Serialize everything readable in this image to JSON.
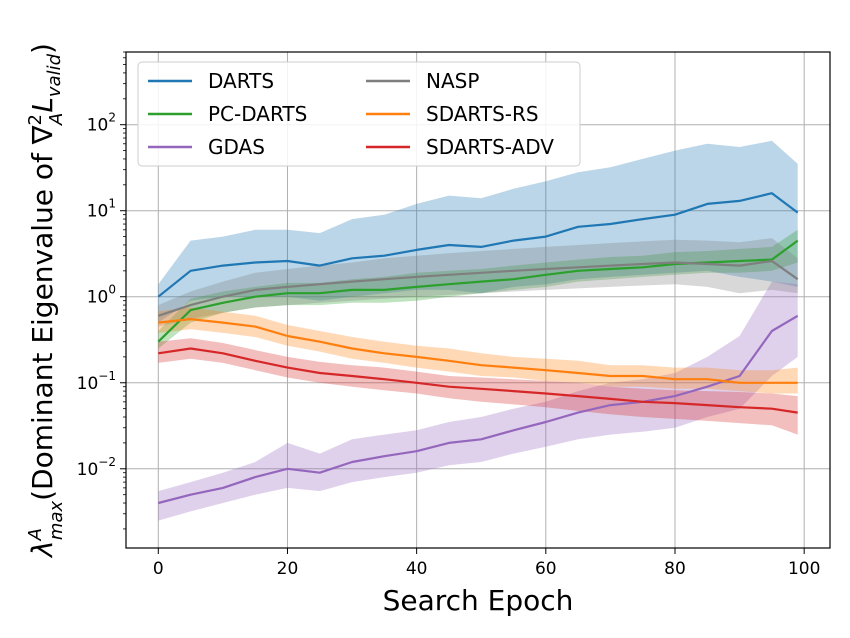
{
  "chart_data": {
    "type": "line",
    "xlabel": "Search Epoch",
    "ylabel": "λ_max^A (Dominant Eigenvalue of ∇²_A L_valid)",
    "ylabel_parts": {
      "lambda": "λ",
      "sup_a": "A",
      "sub_max": "max",
      "mid": "(Dominant Eigenvalue of ∇",
      "sup_2": "2",
      "sub_a": "A",
      "l": "L",
      "sub_valid": "valid",
      "end": ")"
    },
    "x_ticks": [
      "0",
      "20",
      "40",
      "60",
      "80",
      "100"
    ],
    "x_tick_values": [
      0,
      20,
      40,
      60,
      80,
      100
    ],
    "y_tick_exponents": [
      -2,
      -1,
      0,
      1,
      2
    ],
    "y_tick_base": "10",
    "xlim": [
      -5,
      104
    ],
    "ylim": [
      0.0012,
      700
    ],
    "y_scale": "log",
    "grid": true,
    "legend_position": "top-left",
    "series": [
      {
        "name": "DARTS",
        "color": "#1f77b4",
        "x": [
          0,
          5,
          10,
          15,
          20,
          25,
          30,
          35,
          40,
          45,
          50,
          55,
          60,
          65,
          70,
          75,
          80,
          85,
          90,
          95,
          99
        ],
        "values": [
          1.0,
          2.0,
          2.3,
          2.5,
          2.6,
          2.3,
          2.8,
          3.0,
          3.5,
          4.0,
          3.8,
          4.5,
          5.0,
          6.5,
          7.0,
          8.0,
          9.0,
          12.0,
          13.0,
          16.0,
          9.5
        ],
        "lower": [
          0.5,
          0.9,
          1.0,
          1.0,
          1.0,
          0.9,
          1.0,
          1.1,
          1.2,
          1.2,
          1.1,
          1.3,
          1.4,
          1.6,
          1.7,
          1.8,
          1.9,
          2.0,
          1.7,
          1.5,
          1.3
        ],
        "upper": [
          1.4,
          4.5,
          5.0,
          6.0,
          6.0,
          5.5,
          8.0,
          9.0,
          12.0,
          15.0,
          14.0,
          18.0,
          22.0,
          28.0,
          32.0,
          40.0,
          50.0,
          60.0,
          55.0,
          65.0,
          35.0
        ]
      },
      {
        "name": "PC-DARTS",
        "color": "#2ca02c",
        "x": [
          0,
          5,
          10,
          15,
          20,
          25,
          30,
          35,
          40,
          45,
          50,
          55,
          60,
          65,
          70,
          75,
          80,
          85,
          90,
          95,
          99
        ],
        "values": [
          0.3,
          0.7,
          0.85,
          1.0,
          1.1,
          1.1,
          1.2,
          1.2,
          1.3,
          1.4,
          1.5,
          1.6,
          1.8,
          2.0,
          2.1,
          2.2,
          2.4,
          2.5,
          2.6,
          2.7,
          4.5
        ],
        "lower": [
          0.25,
          0.5,
          0.65,
          0.75,
          0.8,
          0.8,
          0.85,
          0.85,
          0.9,
          1.0,
          1.1,
          1.2,
          1.3,
          1.5,
          1.6,
          1.7,
          1.8,
          1.9,
          1.9,
          2.0,
          2.5
        ],
        "upper": [
          0.4,
          0.95,
          1.15,
          1.3,
          1.45,
          1.45,
          1.6,
          1.7,
          1.9,
          2.0,
          2.1,
          2.3,
          2.5,
          2.7,
          2.9,
          3.0,
          3.3,
          3.4,
          3.6,
          3.8,
          6.0
        ]
      },
      {
        "name": "GDAS",
        "color": "#9467bd",
        "x": [
          0,
          5,
          10,
          15,
          20,
          25,
          30,
          35,
          40,
          45,
          50,
          55,
          60,
          65,
          70,
          75,
          80,
          85,
          90,
          95,
          99
        ],
        "values": [
          0.004,
          0.005,
          0.006,
          0.008,
          0.01,
          0.009,
          0.012,
          0.014,
          0.016,
          0.02,
          0.022,
          0.028,
          0.035,
          0.045,
          0.055,
          0.06,
          0.07,
          0.09,
          0.12,
          0.4,
          0.6
        ],
        "lower": [
          0.0025,
          0.0032,
          0.004,
          0.005,
          0.006,
          0.0055,
          0.007,
          0.008,
          0.009,
          0.011,
          0.012,
          0.015,
          0.018,
          0.022,
          0.025,
          0.027,
          0.03,
          0.04,
          0.05,
          0.12,
          0.2
        ],
        "upper": [
          0.0055,
          0.007,
          0.009,
          0.012,
          0.02,
          0.015,
          0.022,
          0.025,
          0.028,
          0.035,
          0.04,
          0.05,
          0.06,
          0.08,
          0.1,
          0.11,
          0.13,
          0.2,
          0.35,
          1.5,
          1.4
        ]
      },
      {
        "name": "NASP",
        "color": "#7f7f7f",
        "x": [
          0,
          5,
          10,
          15,
          20,
          25,
          30,
          35,
          40,
          45,
          50,
          55,
          60,
          65,
          70,
          75,
          80,
          85,
          90,
          95,
          99
        ],
        "values": [
          0.6,
          0.8,
          1.0,
          1.2,
          1.3,
          1.4,
          1.5,
          1.6,
          1.7,
          1.8,
          1.9,
          2.0,
          2.1,
          2.2,
          2.3,
          2.4,
          2.5,
          2.4,
          2.3,
          2.6,
          1.6
        ],
        "lower": [
          0.45,
          0.55,
          0.65,
          0.75,
          0.8,
          0.85,
          0.9,
          0.95,
          1.0,
          1.05,
          1.1,
          1.15,
          1.2,
          1.25,
          1.3,
          1.35,
          1.4,
          1.3,
          1.1,
          1.2,
          1.1
        ],
        "upper": [
          0.8,
          1.15,
          1.5,
          1.9,
          2.1,
          2.3,
          2.5,
          2.8,
          3.0,
          3.2,
          3.4,
          3.6,
          3.8,
          4.0,
          4.2,
          4.4,
          4.6,
          4.5,
          4.3,
          4.8,
          2.8
        ]
      },
      {
        "name": "SDARTS-RS",
        "color": "#ff7f0e",
        "x": [
          0,
          5,
          10,
          15,
          20,
          25,
          30,
          35,
          40,
          45,
          50,
          55,
          60,
          65,
          70,
          75,
          80,
          85,
          90,
          95,
          99
        ],
        "values": [
          0.5,
          0.55,
          0.5,
          0.45,
          0.35,
          0.3,
          0.25,
          0.22,
          0.2,
          0.18,
          0.16,
          0.15,
          0.14,
          0.13,
          0.12,
          0.12,
          0.11,
          0.11,
          0.1,
          0.1,
          0.1
        ],
        "lower": [
          0.38,
          0.42,
          0.38,
          0.34,
          0.27,
          0.23,
          0.19,
          0.17,
          0.15,
          0.135,
          0.12,
          0.115,
          0.105,
          0.1,
          0.09,
          0.09,
          0.085,
          0.085,
          0.08,
          0.075,
          0.075
        ],
        "upper": [
          0.68,
          0.75,
          0.67,
          0.6,
          0.47,
          0.4,
          0.34,
          0.3,
          0.27,
          0.25,
          0.22,
          0.2,
          0.19,
          0.18,
          0.16,
          0.16,
          0.15,
          0.15,
          0.14,
          0.14,
          0.15
        ]
      },
      {
        "name": "SDARTS-ADV",
        "color": "#d62728",
        "x": [
          0,
          5,
          10,
          15,
          20,
          25,
          30,
          35,
          40,
          45,
          50,
          55,
          60,
          65,
          70,
          75,
          80,
          85,
          90,
          95,
          99
        ],
        "values": [
          0.22,
          0.25,
          0.22,
          0.18,
          0.15,
          0.13,
          0.12,
          0.11,
          0.1,
          0.09,
          0.085,
          0.08,
          0.075,
          0.07,
          0.065,
          0.06,
          0.058,
          0.055,
          0.052,
          0.05,
          0.045
        ],
        "lower": [
          0.17,
          0.19,
          0.17,
          0.14,
          0.115,
          0.1,
          0.09,
          0.082,
          0.075,
          0.066,
          0.06,
          0.056,
          0.052,
          0.047,
          0.043,
          0.04,
          0.038,
          0.036,
          0.034,
          0.032,
          0.025
        ],
        "upper": [
          0.3,
          0.33,
          0.29,
          0.24,
          0.2,
          0.175,
          0.16,
          0.15,
          0.135,
          0.12,
          0.115,
          0.11,
          0.105,
          0.1,
          0.09,
          0.085,
          0.082,
          0.08,
          0.078,
          0.075,
          0.07
        ]
      }
    ]
  }
}
